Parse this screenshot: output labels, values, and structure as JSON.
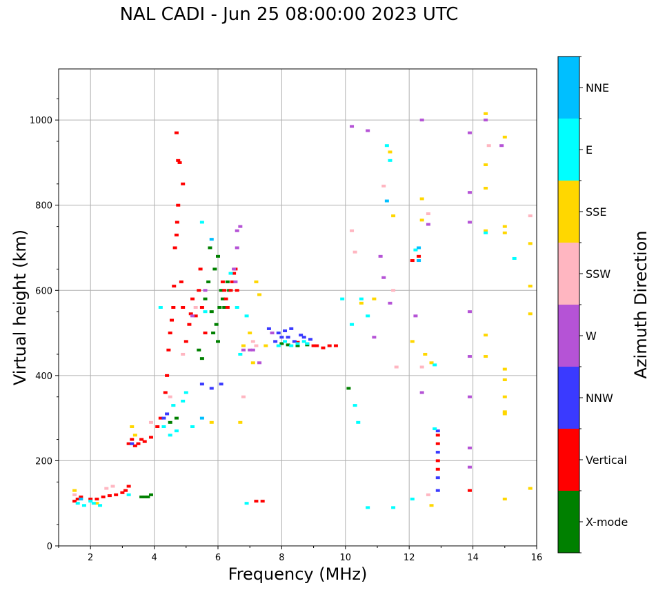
{
  "chart_data": {
    "type": "scatter",
    "title": "NAL CADI - Jun 25 08:00:00 2023 UTC",
    "xlabel": "Frequency (MHz)",
    "ylabel": "Virtual height (km)",
    "xlim": [
      1,
      16
    ],
    "ylim": [
      0,
      1120
    ],
    "xticks": [
      "2",
      "4",
      "6",
      "8",
      "10",
      "12",
      "14",
      "16"
    ],
    "yticks": [
      "0",
      "200",
      "400",
      "600",
      "800",
      "1000"
    ],
    "grid": true,
    "colorbar": {
      "label": "Azimuth Direction",
      "categories": [
        "X-mode",
        "Vertical",
        "NNW",
        "W",
        "SSW",
        "SSE",
        "E",
        "NNE"
      ],
      "colors": [
        "#008000",
        "#ff0000",
        "#3a3aff",
        "#b553d6",
        "#ffb6c1",
        "#ffd700",
        "#00ffff",
        "#00bfff"
      ]
    },
    "series": [
      {
        "name": "X-mode",
        "points": [
          [
            3.6,
            115
          ],
          [
            3.7,
            115
          ],
          [
            3.8,
            115
          ],
          [
            3.9,
            120
          ],
          [
            4.5,
            290
          ],
          [
            4.7,
            300
          ],
          [
            5.4,
            460
          ],
          [
            5.5,
            440
          ],
          [
            5.6,
            580
          ],
          [
            5.7,
            620
          ],
          [
            5.75,
            700
          ],
          [
            5.8,
            550
          ],
          [
            5.85,
            500
          ],
          [
            5.9,
            650
          ],
          [
            5.95,
            520
          ],
          [
            6.0,
            680
          ],
          [
            6.0,
            480
          ],
          [
            6.05,
            560
          ],
          [
            6.1,
            600
          ],
          [
            6.15,
            580
          ],
          [
            6.2,
            560
          ],
          [
            6.3,
            620
          ],
          [
            6.35,
            600
          ],
          [
            8.0,
            475
          ],
          [
            8.2,
            472
          ],
          [
            8.5,
            470
          ],
          [
            8.8,
            472
          ],
          [
            10.1,
            370
          ]
        ]
      },
      {
        "name": "Vertical",
        "points": [
          [
            1.5,
            105
          ],
          [
            1.6,
            110
          ],
          [
            1.7,
            115
          ],
          [
            2.0,
            110
          ],
          [
            2.2,
            110
          ],
          [
            2.4,
            115
          ],
          [
            2.6,
            118
          ],
          [
            2.8,
            120
          ],
          [
            3.0,
            125
          ],
          [
            3.1,
            130
          ],
          [
            3.2,
            140
          ],
          [
            3.2,
            240
          ],
          [
            3.3,
            250
          ],
          [
            3.4,
            235
          ],
          [
            3.5,
            240
          ],
          [
            3.6,
            250
          ],
          [
            3.7,
            245
          ],
          [
            3.9,
            255
          ],
          [
            4.1,
            280
          ],
          [
            4.2,
            300
          ],
          [
            4.35,
            360
          ],
          [
            4.4,
            400
          ],
          [
            4.45,
            460
          ],
          [
            4.5,
            500
          ],
          [
            4.55,
            530
          ],
          [
            4.6,
            560
          ],
          [
            4.62,
            610
          ],
          [
            4.65,
            700
          ],
          [
            4.7,
            730
          ],
          [
            4.72,
            760
          ],
          [
            4.75,
            800
          ],
          [
            4.7,
            970
          ],
          [
            4.75,
            905
          ],
          [
            4.8,
            900
          ],
          [
            4.9,
            850
          ],
          [
            4.85,
            620
          ],
          [
            4.9,
            560
          ],
          [
            5.0,
            480
          ],
          [
            5.1,
            520
          ],
          [
            5.15,
            545
          ],
          [
            5.2,
            580
          ],
          [
            5.3,
            540
          ],
          [
            5.4,
            600
          ],
          [
            5.45,
            650
          ],
          [
            5.5,
            560
          ],
          [
            5.6,
            500
          ],
          [
            6.15,
            620
          ],
          [
            6.2,
            600
          ],
          [
            6.25,
            580
          ],
          [
            6.3,
            560
          ],
          [
            6.4,
            600
          ],
          [
            6.45,
            620
          ],
          [
            6.5,
            640
          ],
          [
            6.55,
            650
          ],
          [
            6.6,
            600
          ],
          [
            7.2,
            105
          ],
          [
            7.4,
            105
          ],
          [
            8.5,
            478
          ],
          [
            8.8,
            475
          ],
          [
            9.0,
            470
          ],
          [
            9.1,
            470
          ],
          [
            9.3,
            465
          ],
          [
            9.5,
            470
          ],
          [
            9.7,
            470
          ],
          [
            12.1,
            670
          ],
          [
            12.3,
            680
          ],
          [
            12.9,
            180
          ],
          [
            12.9,
            200
          ],
          [
            12.9,
            240
          ],
          [
            12.9,
            260
          ],
          [
            13.9,
            130
          ]
        ]
      },
      {
        "name": "NNW",
        "points": [
          [
            3.3,
            240
          ],
          [
            4.3,
            300
          ],
          [
            4.4,
            310
          ],
          [
            5.5,
            380
          ],
          [
            5.8,
            370
          ],
          [
            6.1,
            380
          ],
          [
            7.6,
            510
          ],
          [
            7.8,
            480
          ],
          [
            7.9,
            500
          ],
          [
            8.0,
            490
          ],
          [
            8.1,
            505
          ],
          [
            8.2,
            490
          ],
          [
            8.3,
            510
          ],
          [
            8.4,
            480
          ],
          [
            8.6,
            495
          ],
          [
            8.7,
            490
          ],
          [
            8.9,
            485
          ],
          [
            12.9,
            270
          ],
          [
            12.9,
            220
          ],
          [
            12.9,
            160
          ],
          [
            12.9,
            130
          ]
        ]
      },
      {
        "name": "W",
        "points": [
          [
            5.2,
            540
          ],
          [
            5.6,
            600
          ],
          [
            6.5,
            650
          ],
          [
            6.55,
            620
          ],
          [
            6.6,
            700
          ],
          [
            6.6,
            740
          ],
          [
            6.7,
            750
          ],
          [
            6.8,
            460
          ],
          [
            7.0,
            460
          ],
          [
            7.1,
            460
          ],
          [
            7.3,
            430
          ],
          [
            7.7,
            500
          ],
          [
            10.2,
            985
          ],
          [
            10.7,
            975
          ],
          [
            10.9,
            490
          ],
          [
            11.1,
            680
          ],
          [
            11.2,
            630
          ],
          [
            11.4,
            570
          ],
          [
            12.2,
            540
          ],
          [
            12.4,
            360
          ],
          [
            12.6,
            755
          ],
          [
            12.4,
            1000
          ],
          [
            13.9,
            970
          ],
          [
            13.9,
            830
          ],
          [
            13.9,
            760
          ],
          [
            13.9,
            550
          ],
          [
            13.9,
            445
          ],
          [
            13.9,
            350
          ],
          [
            13.9,
            230
          ],
          [
            13.9,
            185
          ],
          [
            14.4,
            1000
          ],
          [
            14.9,
            940
          ]
        ]
      },
      {
        "name": "SSW",
        "points": [
          [
            1.5,
            120
          ],
          [
            2.5,
            135
          ],
          [
            2.7,
            140
          ],
          [
            3.9,
            290
          ],
          [
            4.5,
            350
          ],
          [
            4.6,
            330
          ],
          [
            4.9,
            450
          ],
          [
            5.3,
            560
          ],
          [
            6.8,
            350
          ],
          [
            7.1,
            480
          ],
          [
            7.2,
            470
          ],
          [
            10.2,
            740
          ],
          [
            10.3,
            690
          ],
          [
            11.2,
            845
          ],
          [
            11.5,
            600
          ],
          [
            11.6,
            420
          ],
          [
            12.4,
            420
          ],
          [
            12.6,
            120
          ],
          [
            12.6,
            780
          ],
          [
            14.5,
            940
          ],
          [
            15.8,
            775
          ]
        ]
      },
      {
        "name": "SSE",
        "points": [
          [
            1.5,
            130
          ],
          [
            2.2,
            100
          ],
          [
            3.3,
            280
          ],
          [
            3.4,
            260
          ],
          [
            5.8,
            290
          ],
          [
            6.7,
            290
          ],
          [
            6.8,
            470
          ],
          [
            7.0,
            500
          ],
          [
            7.1,
            430
          ],
          [
            7.2,
            620
          ],
          [
            7.5,
            470
          ],
          [
            7.3,
            590
          ],
          [
            10.5,
            570
          ],
          [
            10.9,
            580
          ],
          [
            11.4,
            925
          ],
          [
            11.5,
            775
          ],
          [
            12.1,
            480
          ],
          [
            12.4,
            815
          ],
          [
            12.4,
            765
          ],
          [
            12.5,
            450
          ],
          [
            12.7,
            430
          ],
          [
            12.7,
            95
          ],
          [
            14.4,
            1015
          ],
          [
            14.4,
            895
          ],
          [
            14.4,
            840
          ],
          [
            14.4,
            740
          ],
          [
            14.4,
            495
          ],
          [
            14.4,
            445
          ],
          [
            15.0,
            960
          ],
          [
            15.0,
            750
          ],
          [
            15.0,
            735
          ],
          [
            15.0,
            415
          ],
          [
            15.0,
            390
          ],
          [
            15.0,
            350
          ],
          [
            15.0,
            315
          ],
          [
            15.0,
            310
          ],
          [
            15.0,
            110
          ],
          [
            15.8,
            710
          ],
          [
            15.8,
            610
          ],
          [
            15.8,
            545
          ],
          [
            15.8,
            135
          ]
        ]
      },
      {
        "name": "E",
        "points": [
          [
            1.6,
            100
          ],
          [
            1.8,
            95
          ],
          [
            2.0,
            105
          ],
          [
            2.1,
            100
          ],
          [
            2.3,
            95
          ],
          [
            3.2,
            120
          ],
          [
            4.2,
            560
          ],
          [
            4.3,
            280
          ],
          [
            4.5,
            260
          ],
          [
            4.6,
            330
          ],
          [
            4.7,
            270
          ],
          [
            4.9,
            340
          ],
          [
            5.0,
            360
          ],
          [
            5.2,
            280
          ],
          [
            5.5,
            760
          ],
          [
            5.6,
            550
          ],
          [
            6.4,
            640
          ],
          [
            6.6,
            560
          ],
          [
            6.7,
            450
          ],
          [
            6.9,
            540
          ],
          [
            6.9,
            100
          ],
          [
            7.9,
            470
          ],
          [
            8.1,
            480
          ],
          [
            8.3,
            470
          ],
          [
            8.5,
            475
          ],
          [
            8.7,
            480
          ],
          [
            8.8,
            475
          ],
          [
            9.9,
            580
          ],
          [
            10.2,
            520
          ],
          [
            10.3,
            330
          ],
          [
            10.4,
            290
          ],
          [
            10.5,
            580
          ],
          [
            10.7,
            540
          ],
          [
            10.7,
            90
          ],
          [
            11.3,
            940
          ],
          [
            11.4,
            905
          ],
          [
            11.5,
            90
          ],
          [
            12.1,
            110
          ],
          [
            12.2,
            695
          ],
          [
            12.8,
            425
          ],
          [
            12.8,
            275
          ],
          [
            14.4,
            735
          ],
          [
            15.3,
            675
          ]
        ]
      },
      {
        "name": "NNE",
        "points": [
          [
            1.7,
            110
          ],
          [
            5.5,
            300
          ],
          [
            5.8,
            720
          ],
          [
            11.3,
            810
          ],
          [
            12.3,
            700
          ],
          [
            12.3,
            670
          ]
        ]
      }
    ]
  }
}
